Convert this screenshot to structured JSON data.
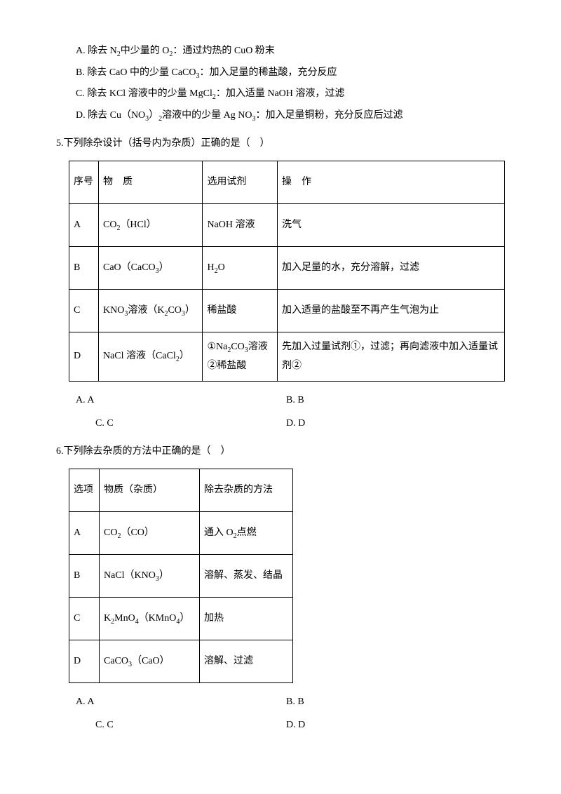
{
  "options4": {
    "A": "A. 除去 N₂中少量的 O₂：通过灼热的 CuO 粉末",
    "B": "B. 除去 CaO 中的少量 CaCO₃：加入足量的稀盐酸，充分反应",
    "C": "C. 除去 KCl 溶液中的少量 MgCl₂：加入适量 NaOH 溶液，过滤",
    "D": "D. 除去 Cu（NO₃）₂溶液中的少量 Ag NO₃：加入足量铜粉，充分反应后过滤"
  },
  "q5": {
    "stem": "5.下列除杂设计（括号内为杂质）正确的是（　）",
    "header": [
      "序号",
      "物　质",
      "选用试剂",
      "操　作"
    ],
    "rows": [
      [
        "A",
        "CO₂（HCl）",
        "NaOH 溶液",
        "洗气"
      ],
      [
        "B",
        "CaO（CaCO₃）",
        "H₂O",
        "加入足量的水，充分溶解，过滤"
      ],
      [
        "C",
        "KNO₃溶液（K₂CO₃）",
        "稀盐酸",
        "加入适量的盐酸至不再产生气泡为止"
      ],
      [
        "D",
        "NaCl 溶液（CaCl₂）",
        "①Na₂CO₃溶液\n②稀盐酸",
        "先加入过量试剂①，过滤；再向滤液中加入适量试剂②"
      ]
    ],
    "choices": {
      "A": "A. A",
      "B": "B. B",
      "C": "C. C",
      "D": "D. D"
    }
  },
  "q6": {
    "stem": "6.下列除去杂质的方法中正确的是（　）",
    "header": [
      "选项",
      "物质（杂质）",
      "除去杂质的方法"
    ],
    "rows": [
      [
        "A",
        "CO₂（CO）",
        "通入 O₂点燃"
      ],
      [
        "B",
        "NaCl（KNO₃）",
        "溶解、蒸发、结晶"
      ],
      [
        "C",
        "K₂MnO₄（KMnO₄）",
        "加热"
      ],
      [
        "D",
        "CaCO₃（CaO）",
        "溶解、过滤"
      ]
    ],
    "choices": {
      "A": "A. A",
      "B": "B. B",
      "C": "C. C",
      "D": "D. D"
    }
  }
}
